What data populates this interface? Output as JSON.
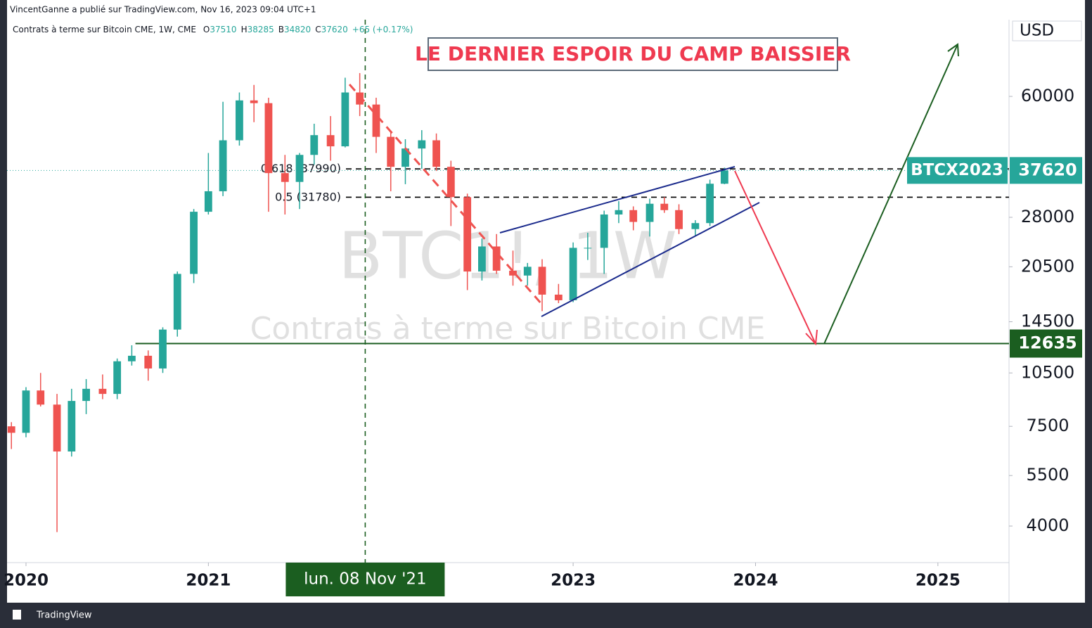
{
  "header": "VincentGanne a publié sur TradingView.com, Nov 16, 2023 09:04 UTC+1",
  "footer": "TradingView",
  "chart_data": {
    "type": "candlestick",
    "title": "LE DERNIER ESPOIR DU CAMP BAISSIER",
    "watermark": "BTC1!, 1W",
    "watermark_subtitle": "Contrats à terme sur Bitcoin CME",
    "legend_line": {
      "symbol": "Contrats à terme sur Bitcoin CME, 1W, CME",
      "ohlc_labels": [
        "O",
        "H",
        "B",
        "C"
      ],
      "ohlc": [
        37510,
        38285,
        34820,
        37620
      ],
      "change": "+65 (+0.17%)"
    },
    "currency": "USD",
    "log_scale": true,
    "up_color": "#26a69a",
    "down_color": "#ef5350",
    "x": [
      2019.92,
      2020.0,
      2020.08,
      2020.17,
      2020.25,
      2020.33,
      2020.42,
      2020.5,
      2020.58,
      2020.67,
      2020.75,
      2020.83,
      2020.92,
      2021.0,
      2021.08,
      2021.17,
      2021.25,
      2021.33,
      2021.42,
      2021.5,
      2021.58,
      2021.67,
      2021.75,
      2021.83,
      2021.92,
      2022.0,
      2022.08,
      2022.17,
      2022.25,
      2022.33,
      2022.42,
      2022.5,
      2022.58,
      2022.67,
      2022.75,
      2022.83,
      2022.92,
      2023.0,
      2023.08,
      2023.17,
      2023.25,
      2023.33,
      2023.42,
      2023.5,
      2023.58,
      2023.67,
      2023.75,
      2023.83
    ],
    "open": [
      7500,
      7200,
      9400,
      8600,
      6400,
      8800,
      9500,
      9200,
      11300,
      11700,
      10800,
      13800,
      19600,
      29000,
      33000,
      45500,
      58500,
      57500,
      37000,
      35000,
      41500,
      47000,
      43800,
      61500,
      57000,
      46500,
      38500,
      43200,
      45500,
      38500,
      31800,
      19900,
      23300,
      20000,
      19400,
      20500,
      17200,
      16600,
      23100,
      23100,
      28500,
      29300,
      27200,
      30500,
      29300,
      26000,
      27000,
      34600
    ],
    "high": [
      7700,
      9600,
      10500,
      9200,
      9500,
      10100,
      10400,
      11500,
      12500,
      12100,
      14000,
      19900,
      29500,
      42000,
      58000,
      61500,
      64500,
      59500,
      41500,
      42000,
      50500,
      53000,
      67500,
      69500,
      59500,
      48000,
      45800,
      48500,
      47500,
      40000,
      32500,
      24500,
      25200,
      22700,
      21000,
      21500,
      18400,
      23900,
      25400,
      29200,
      31000,
      30000,
      31500,
      31800,
      30400,
      27500,
      35500,
      38285
    ],
    "low": [
      6500,
      7000,
      8500,
      3850,
      6200,
      8100,
      8900,
      8900,
      11000,
      10000,
      10500,
      13200,
      18500,
      28500,
      32000,
      44000,
      51000,
      29000,
      28500,
      29500,
      39000,
      40000,
      43500,
      53000,
      42000,
      33000,
      34500,
      38000,
      37500,
      26500,
      17700,
      18800,
      19600,
      18200,
      18200,
      15500,
      16300,
      16400,
      21400,
      19600,
      27000,
      25800,
      24800,
      28800,
      25200,
      24900,
      26500,
      34500
    ],
    "close": [
      7200,
      9400,
      8600,
      6400,
      8800,
      9500,
      9200,
      11300,
      11700,
      10800,
      13800,
      19600,
      29000,
      33000,
      45500,
      58500,
      57500,
      37000,
      35000,
      41500,
      47000,
      43800,
      61500,
      57000,
      46500,
      38500,
      43200,
      45500,
      38500,
      31800,
      19900,
      23300,
      20000,
      19400,
      20500,
      17200,
      16600,
      23100,
      23100,
      28500,
      29300,
      27200,
      30500,
      29300,
      26000,
      27000,
      34600,
      37620
    ],
    "xlim": [
      2019.896,
      2025.39
    ],
    "ylim": [
      3177,
      97300
    ],
    "xticks": [
      2020,
      2021,
      2023,
      2024,
      2025
    ],
    "yticks": [
      4000,
      5500,
      7500,
      10500,
      14500,
      20500,
      28000,
      60000
    ],
    "fib_levels": [
      {
        "ratio": "0.618",
        "value": 37990
      },
      {
        "ratio": "0.5",
        "value": 31780
      }
    ],
    "last_price": {
      "name": "BTCX2023",
      "value": 37620
    },
    "support": {
      "value": 12635,
      "from": 2020.6
    },
    "crosshair": {
      "x": 2021.86,
      "label": "lun. 08 Nov '21"
    }
  }
}
